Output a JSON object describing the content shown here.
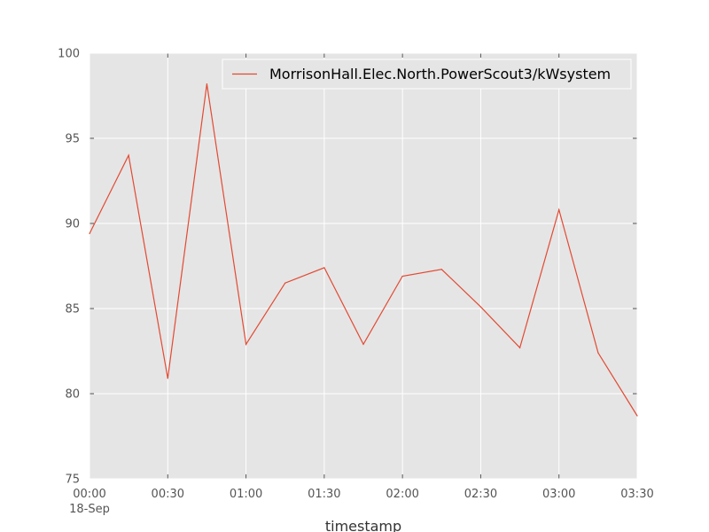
{
  "chart_data": {
    "type": "line",
    "title": "",
    "xlabel": "timestamp",
    "ylabel": "",
    "x": [
      "00:00",
      "00:15",
      "00:30",
      "00:45",
      "01:00",
      "01:15",
      "01:30",
      "01:45",
      "02:00",
      "02:15",
      "02:30",
      "02:45",
      "03:00",
      "03:15",
      "03:30"
    ],
    "x_ticks": [
      "00:00",
      "00:30",
      "01:00",
      "01:30",
      "02:00",
      "02:30",
      "03:00",
      "03:30"
    ],
    "x_date_label": "18-Sep",
    "series": [
      {
        "name": "MorrisonHall.Elec.North.PowerScout3/kWsystem",
        "color": "#e24a33",
        "values": [
          89.4,
          94.0,
          80.9,
          98.2,
          82.9,
          86.5,
          87.4,
          82.9,
          86.9,
          87.3,
          85.1,
          82.7,
          90.8,
          82.4,
          78.7
        ]
      }
    ],
    "ylim": [
      75,
      100
    ],
    "y_ticks": [
      75,
      80,
      85,
      90,
      95,
      100
    ],
    "grid": true,
    "legend": "top-right",
    "background": "#e5e5e5"
  }
}
